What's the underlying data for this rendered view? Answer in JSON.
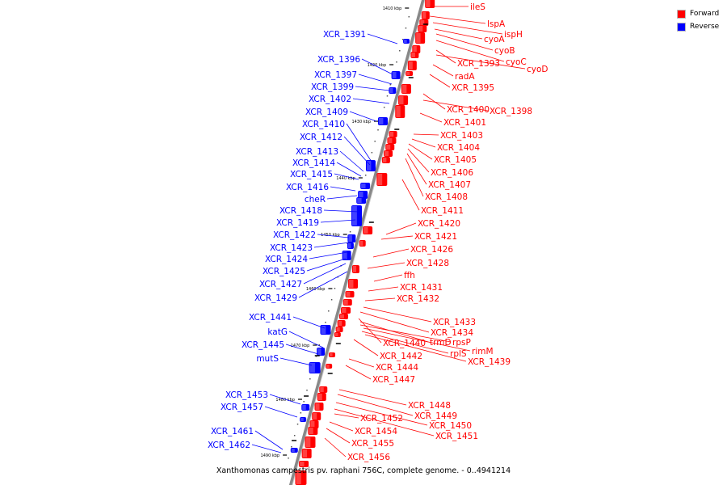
{
  "caption": "Xanthomonas campestris pv. raphani 756C, complete genome. - 0..4941214",
  "legend": [
    {
      "label": "Forward",
      "color": "#ff0000"
    },
    {
      "label": "Reverse",
      "color": "#0000ff"
    }
  ],
  "colors": {
    "forward": "#ff0000",
    "reverse": "#0000ff",
    "backbone": "#888888"
  },
  "ticks": [
    "1410 kbp",
    "1420 kbp",
    "1430 kbp",
    "1440 kbp",
    "1450 kbp",
    "1460 kbp",
    "1470 kbp",
    "1480 kbp",
    "1490 kbp"
  ],
  "reverse_genes": [
    "XCR_1391",
    "XCR_1396",
    "XCR_1397",
    "XCR_1399",
    "XCR_1402",
    "XCR_1409",
    "XCR_1410",
    "XCR_1412",
    "XCR_1413",
    "XCR_1414",
    "XCR_1415",
    "XCR_1416",
    "cheR",
    "XCR_1418",
    "XCR_1419",
    "XCR_1422",
    "XCR_1423",
    "XCR_1424",
    "XCR_1425",
    "XCR_1427",
    "XCR_1429",
    "XCR_1441",
    "katG",
    "XCR_1445",
    "mutS",
    "XCR_1453",
    "XCR_1457",
    "XCR_1461",
    "XCR_1462"
  ],
  "forward_genes": [
    "ileS",
    "lspA",
    "ispH",
    "cyoA",
    "cyoB",
    "cyoC",
    "XCR_1393",
    "cyoD",
    "radA",
    "XCR_1395",
    "XCR_1400",
    "XCR_1398",
    "XCR_1401",
    "XCR_1403",
    "XCR_1404",
    "XCR_1405",
    "XCR_1406",
    "XCR_1407",
    "XCR_1408",
    "XCR_1411",
    "XCR_1420",
    "XCR_1421",
    "XCR_1426",
    "XCR_1428",
    "ffh",
    "XCR_1431",
    "XCR_1432",
    "XCR_1433",
    "XCR_1434",
    "XCR_1440",
    "trmD",
    "rpsP",
    "rimM",
    "rplS",
    "XCR_1439",
    "XCR_1442",
    "XCR_1444",
    "XCR_1447",
    "XCR_1448",
    "XCR_1449",
    "XCR_1450",
    "XCR_1451",
    "XCR_1452",
    "XCR_1454",
    "XCR_1455",
    "XCR_1456"
  ]
}
